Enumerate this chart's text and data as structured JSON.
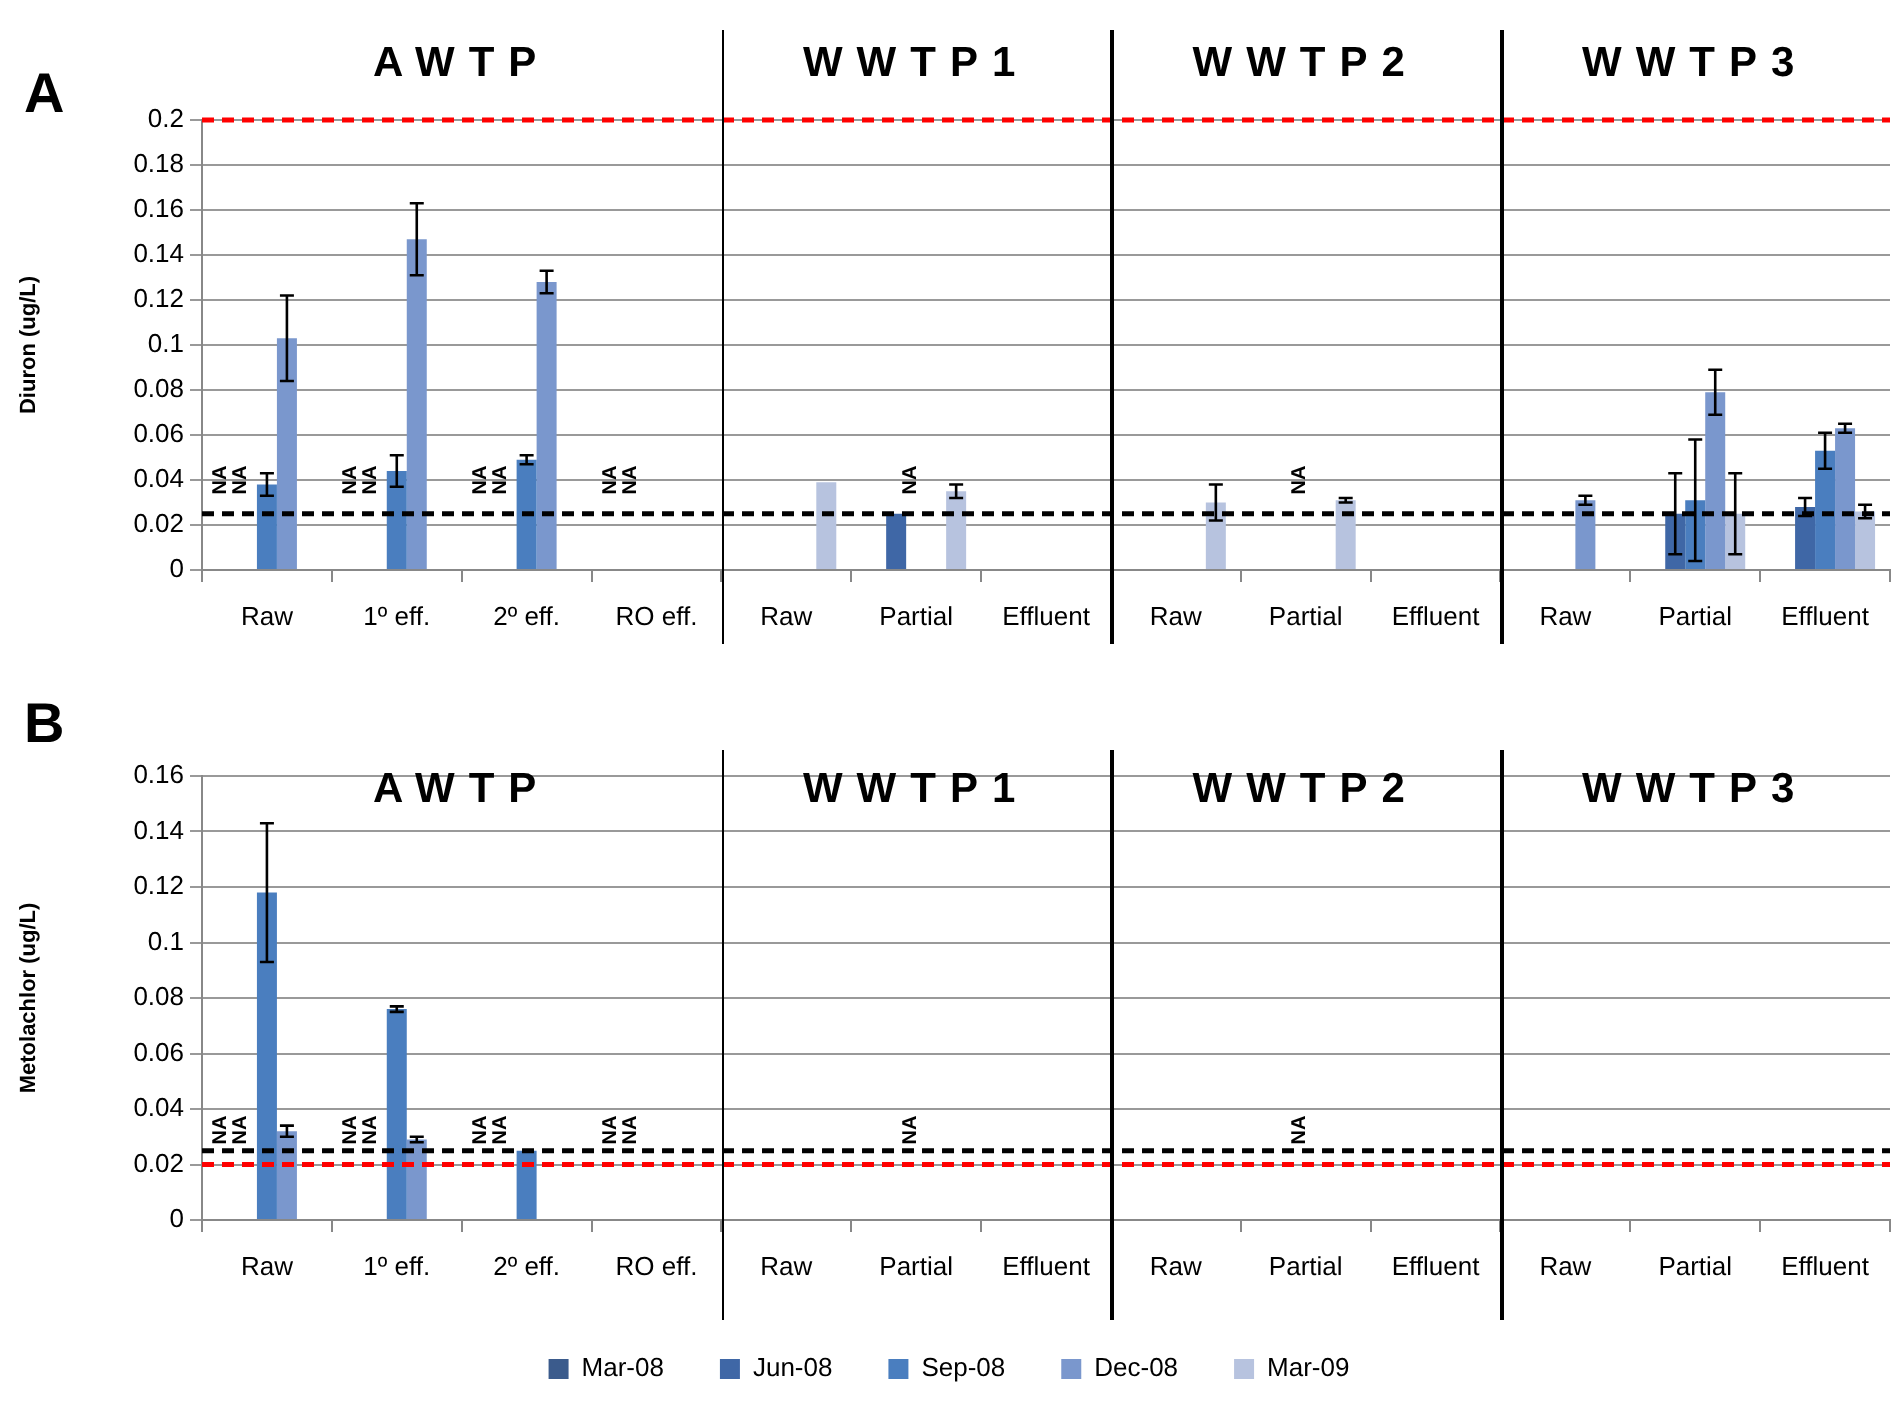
{
  "chart_data": [
    {
      "type": "bar",
      "ylabel": "Diuron (ug/L)",
      "annotations": [
        "A",
        "AWTP",
        "WWTP1",
        "WWTP2",
        "WWTP3"
      ],
      "categories": [
        "Raw",
        "1º eff.",
        "2º eff.",
        "RO eff.",
        "Raw",
        "Partial",
        "Effluent",
        "Raw",
        "Partial",
        "Effluent",
        "Raw",
        "Partial",
        "Effluent"
      ],
      "series": [
        {
          "color": "#3b5b8c",
          "values": [
            null,
            null,
            null,
            null,
            null,
            null,
            null,
            null,
            null,
            null,
            null,
            null,
            null
          ],
          "value_labels": [
            "NA",
            "NA",
            "NA",
            "NA",
            null,
            null,
            null,
            null,
            null,
            null,
            null,
            null,
            null
          ]
        },
        {
          "color": "#3f67a6",
          "values": [
            null,
            null,
            null,
            null,
            null,
            0.025,
            null,
            null,
            null,
            null,
            null,
            0.025,
            0.028
          ],
          "errors": [
            null,
            null,
            null,
            null,
            null,
            null,
            null,
            null,
            null,
            null,
            null,
            0.018,
            0.004
          ],
          "value_labels": [
            "NA",
            "NA",
            "NA",
            "NA",
            null,
            null,
            null,
            null,
            null,
            null,
            null,
            null,
            null
          ]
        },
        {
          "color": "#4a7ebf",
          "values": [
            0.038,
            0.044,
            0.049,
            null,
            null,
            null,
            null,
            null,
            null,
            null,
            null,
            0.031,
            0.053
          ],
          "errors": [
            0.005,
            0.007,
            0.002,
            null,
            null,
            null,
            null,
            null,
            null,
            null,
            null,
            0.027,
            0.008
          ],
          "value_labels": [
            null,
            null,
            null,
            null,
            null,
            "NA",
            null,
            null,
            "NA",
            null,
            null,
            null,
            null
          ]
        },
        {
          "color": "#7a97cd",
          "values": [
            0.103,
            0.147,
            0.128,
            null,
            null,
            null,
            null,
            null,
            null,
            null,
            0.031,
            0.079,
            0.063
          ],
          "errors": [
            0.019,
            0.016,
            0.005,
            null,
            null,
            null,
            null,
            null,
            null,
            null,
            0.002,
            0.01,
            0.002
          ]
        },
        {
          "color": "#b7c3df",
          "values": [
            null,
            null,
            null,
            null,
            0.039,
            0.035,
            null,
            0.03,
            0.031,
            null,
            null,
            0.025,
            0.026
          ],
          "errors": [
            null,
            null,
            null,
            null,
            null,
            0.003,
            null,
            0.008,
            0.001,
            null,
            null,
            0.018,
            0.003
          ]
        }
      ],
      "ylim": [
        0,
        0.2
      ],
      "yticks": [
        0,
        0.02,
        0.04,
        0.06,
        0.08,
        0.1,
        0.12,
        0.14,
        0.16,
        0.18,
        0.2
      ],
      "grid": "y",
      "legend": false,
      "ref_lines": [
        {
          "axis": "y",
          "value": 0.2,
          "color": "#ff0000",
          "line_style": "dashed"
        },
        {
          "axis": "y",
          "value": 0.025,
          "color": "#000000",
          "line_style": "dashed"
        }
      ]
    },
    {
      "type": "bar",
      "ylabel": "Metolachlor (ug/L)",
      "annotations": [
        "B",
        "AWTP",
        "WWTP1",
        "WWTP2",
        "WWTP3"
      ],
      "categories": [
        "Raw",
        "1º eff.",
        "2º eff.",
        "RO eff.",
        "Raw",
        "Partial",
        "Effluent",
        "Raw",
        "Partial",
        "Effluent",
        "Raw",
        "Partial",
        "Effluent"
      ],
      "series": [
        {
          "name": "Mar-08",
          "color": "#3b5b8c",
          "values": [
            null,
            null,
            null,
            null,
            null,
            null,
            null,
            null,
            null,
            null,
            null,
            null,
            null
          ],
          "value_labels": [
            "NA",
            "NA",
            "NA",
            "NA",
            null,
            null,
            null,
            null,
            null,
            null,
            null,
            null,
            null
          ]
        },
        {
          "name": "Jun-08",
          "color": "#3f67a6",
          "values": [
            null,
            null,
            null,
            null,
            null,
            null,
            null,
            null,
            null,
            null,
            null,
            null,
            null
          ],
          "value_labels": [
            "NA",
            "NA",
            "NA",
            "NA",
            null,
            null,
            null,
            null,
            null,
            null,
            null,
            null,
            null
          ]
        },
        {
          "name": "Sep-08",
          "color": "#4a7ebf",
          "values": [
            0.118,
            0.076,
            0.025,
            null,
            null,
            null,
            null,
            null,
            null,
            null,
            null,
            null,
            null
          ],
          "errors": [
            0.025,
            0.001,
            null,
            null,
            null,
            null,
            null,
            null,
            null,
            null,
            null,
            null,
            null
          ],
          "value_labels": [
            null,
            null,
            null,
            null,
            null,
            "NA",
            null,
            null,
            "NA",
            null,
            null,
            null,
            null
          ]
        },
        {
          "name": "Dec-08",
          "color": "#7a97cd",
          "values": [
            0.032,
            0.029,
            null,
            null,
            null,
            null,
            null,
            null,
            null,
            null,
            null,
            null,
            null
          ],
          "errors": [
            0.002,
            0.001,
            null,
            null,
            null,
            null,
            null,
            null,
            null,
            null,
            null,
            null,
            null
          ]
        },
        {
          "name": "Mar-09",
          "color": "#b7c3df",
          "values": [
            null,
            null,
            null,
            null,
            null,
            null,
            null,
            null,
            null,
            null,
            null,
            null,
            null
          ]
        }
      ],
      "ylim": [
        0,
        0.16
      ],
      "yticks": [
        0,
        0.02,
        0.04,
        0.06,
        0.08,
        0.1,
        0.12,
        0.14,
        0.16
      ],
      "grid": "y",
      "legend": "bottom",
      "ref_lines": [
        {
          "axis": "y",
          "value": 0.025,
          "color": "#000000",
          "line_style": "dashed"
        },
        {
          "axis": "y",
          "value": 0.02,
          "color": "#ff0000",
          "line_style": "dashed"
        }
      ]
    }
  ]
}
